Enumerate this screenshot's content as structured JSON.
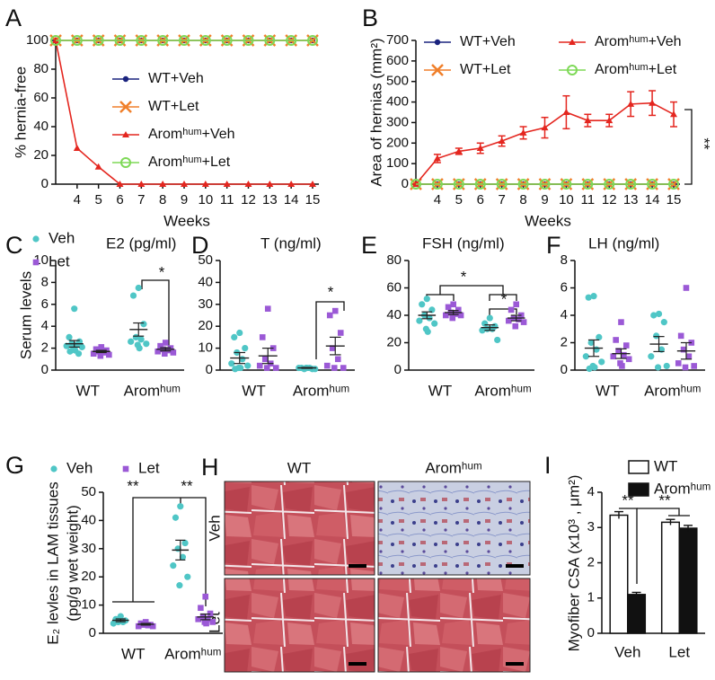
{
  "chart_data": [
    {
      "panel": "A",
      "type": "line",
      "ylabel": "% hernia-free",
      "xlabel": "Weeks",
      "categories": [
        null,
        "4",
        "5",
        "6",
        "7",
        "8",
        "9",
        "10",
        "11",
        "12",
        "13",
        "14",
        "15"
      ],
      "series": [
        {
          "name": "WT+Veh",
          "color": "#1a237e",
          "marker": "dot",
          "values": [
            100,
            100,
            100,
            100,
            100,
            100,
            100,
            100,
            100,
            100,
            100,
            100,
            100
          ]
        },
        {
          "name": "WT+Let",
          "color": "#f07f2a",
          "marker": "x",
          "values": [
            100,
            100,
            100,
            100,
            100,
            100,
            100,
            100,
            100,
            100,
            100,
            100,
            100
          ]
        },
        {
          "name": "Aromʰᵘᵐ+Veh",
          "color": "#e4261f",
          "marker": "triangle",
          "values": [
            100,
            25,
            12,
            0,
            0,
            0,
            0,
            0,
            0,
            0,
            0,
            0,
            0
          ]
        },
        {
          "name": "Aromʰᵘᵐ+Let",
          "color": "#7ed957",
          "marker": "ring",
          "values": [
            100,
            100,
            100,
            100,
            100,
            100,
            100,
            100,
            100,
            100,
            100,
            100,
            100
          ]
        }
      ],
      "ylim": [
        0,
        100
      ],
      "yticks": [
        0,
        20,
        40,
        60,
        80,
        100
      ]
    },
    {
      "panel": "B",
      "type": "line",
      "ylabel": "Area of hernias (mm²)",
      "xlabel": "Weeks",
      "categories": [
        null,
        "4",
        "5",
        "6",
        "7",
        "8",
        "9",
        "10",
        "11",
        "12",
        "13",
        "14",
        "15"
      ],
      "series": [
        {
          "name": "WT+Veh",
          "color": "#1a237e",
          "marker": "dot",
          "values": [
            0,
            0,
            0,
            0,
            0,
            0,
            0,
            0,
            0,
            0,
            0,
            0,
            0
          ]
        },
        {
          "name": "WT+Let",
          "color": "#f07f2a",
          "marker": "x",
          "values": [
            0,
            0,
            0,
            0,
            0,
            0,
            0,
            0,
            0,
            0,
            0,
            0,
            0
          ]
        },
        {
          "name": "Aromʰᵘᵐ+Veh",
          "color": "#e4261f",
          "marker": "triangle",
          "values": [
            0,
            125,
            160,
            175,
            210,
            250,
            275,
            350,
            310,
            310,
            390,
            395,
            340
          ],
          "errors": [
            0,
            20,
            15,
            25,
            25,
            30,
            50,
            80,
            30,
            30,
            60,
            60,
            60
          ]
        },
        {
          "name": "Aromʰᵘᵐ+Let",
          "color": "#7ed957",
          "marker": "ring",
          "values": [
            0,
            0,
            0,
            0,
            0,
            0,
            0,
            0,
            0,
            0,
            0,
            0,
            0
          ]
        }
      ],
      "ylim": [
        0,
        700
      ],
      "yticks": [
        0,
        100,
        200,
        300,
        400,
        500,
        600,
        700
      ],
      "annotations": [
        "**"
      ]
    },
    {
      "panel": "C",
      "type": "strip",
      "title": "E2 (pg/ml)",
      "ylabel": "Serum levels",
      "categories": [
        "WT",
        "Aromʰᵘᵐ"
      ],
      "series": [
        {
          "name": "Veh",
          "color": "#4fc6c6",
          "marker": "circle",
          "values": [
            [
              5.6,
              3.0,
              2.6,
              2.4,
              2.3,
              2.2,
              2.1,
              2.0,
              1.8,
              1.7,
              1.5
            ],
            [
              7.5,
              6.8,
              4.2,
              3.0,
              2.8,
              2.6,
              2.4,
              2.3,
              2.0
            ]
          ],
          "mean": [
            2.4,
            3.7
          ],
          "sem": [
            0.3,
            0.6
          ]
        },
        {
          "name": "Let",
          "color": "#9b59d6",
          "marker": "square",
          "values": [
            [
              2.1,
              1.9,
              1.8,
              1.7,
              1.6,
              1.5,
              1.4,
              1.3,
              1.7
            ],
            [
              2.5,
              2.2,
              2.0,
              1.9,
              1.8,
              1.7,
              1.6,
              1.5
            ]
          ],
          "mean": [
            1.7,
            1.9
          ],
          "sem": [
            0.1,
            0.15
          ]
        }
      ],
      "ylim": [
        0,
        10
      ],
      "yticks": [
        0,
        2,
        4,
        6,
        8,
        10
      ],
      "annotations": [
        "*"
      ]
    },
    {
      "panel": "D",
      "type": "strip",
      "title": "T (ng/ml)",
      "categories": [
        "WT",
        "Aromʰᵘᵐ"
      ],
      "series": [
        {
          "color": "#4fc6c6",
          "marker": "circle",
          "values": [
            [
              17,
              15,
              10,
              8,
              5,
              3,
              2,
              1,
              1,
              0.5
            ],
            [
              1,
              1,
              0.5,
              0.5,
              1,
              1,
              0.5,
              1
            ]
          ],
          "mean": [
            5.5,
            1
          ],
          "sem": [
            2.5,
            0.2
          ]
        },
        {
          "color": "#9b59d6",
          "marker": "square",
          "values": [
            [
              28,
              15,
              10,
              5,
              3,
              2,
              1,
              1
            ],
            [
              27,
              25,
              17,
              10,
              5,
              2,
              1,
              1
            ]
          ],
          "mean": [
            6.5,
            11
          ],
          "sem": [
            3.5,
            4
          ]
        }
      ],
      "ylim": [
        0,
        50
      ],
      "yticks": [
        0,
        10,
        20,
        30,
        40,
        50
      ],
      "annotations": [
        "*"
      ]
    },
    {
      "panel": "E",
      "type": "strip",
      "title": "FSH (ng/ml)",
      "categories": [
        "WT",
        "Aromʰᵘᵐ"
      ],
      "series": [
        {
          "color": "#4fc6c6",
          "marker": "circle",
          "values": [
            [
              52,
              48,
              44,
              40,
              38,
              36,
              34,
              30,
              28
            ],
            [
              38,
              34,
              32,
              30,
              30,
              29,
              22
            ]
          ],
          "mean": [
            40,
            31
          ],
          "sem": [
            2.5,
            2
          ]
        },
        {
          "color": "#9b59d6",
          "marker": "square",
          "values": [
            [
              48,
              46,
              44,
              42,
              41,
              40,
              40,
              38
            ],
            [
              48,
              44,
              40,
              38,
              37,
              36,
              35,
              32
            ]
          ],
          "mean": [
            42,
            38
          ],
          "sem": [
            1.5,
            2
          ]
        }
      ],
      "ylim": [
        0,
        80
      ],
      "yticks": [
        0,
        20,
        40,
        60,
        80
      ],
      "annotations": [
        "*",
        "*"
      ]
    },
    {
      "panel": "F",
      "type": "strip",
      "title": "LH (ng/ml)",
      "categories": [
        "WT",
        "Aromʰᵘᵐ"
      ],
      "series": [
        {
          "color": "#4fc6c6",
          "marker": "circle",
          "values": [
            [
              5.4,
              5.3,
              2.4,
              2.0,
              1.5,
              1.0,
              0.6,
              0.3,
              0.2,
              0.1
            ],
            [
              4.1,
              4.0,
              3.5,
              2.5,
              1.5,
              1.0,
              0.3,
              0.2
            ]
          ],
          "mean": [
            1.6,
            1.9
          ],
          "sem": [
            0.6,
            0.55
          ]
        },
        {
          "color": "#9b59d6",
          "marker": "square",
          "values": [
            [
              3.5,
              2.2,
              1.8,
              1.4,
              1.1,
              1.0,
              0.8,
              0.5,
              0.3
            ],
            [
              6.0,
              2.5,
              2.0,
              1.5,
              1.0,
              0.5,
              0.3,
              0.2
            ]
          ],
          "mean": [
            1.2,
            1.4
          ],
          "sem": [
            0.35,
            0.6
          ]
        }
      ],
      "ylim": [
        0,
        8
      ],
      "yticks": [
        0,
        2,
        4,
        6,
        8
      ]
    },
    {
      "panel": "G",
      "type": "strip",
      "ylabel": [
        "E₂ levles in LAM tissues",
        "(pg/g wet weight)"
      ],
      "categories": [
        "WT",
        "Aromʰᵘᵐ"
      ],
      "series": [
        {
          "name": "Veh",
          "color": "#4fc6c6",
          "marker": "circle",
          "values": [
            [
              6,
              5,
              4.5,
              4,
              4,
              3.5
            ],
            [
              45,
              41,
              32,
              30,
              27,
              24,
              20,
              17
            ]
          ],
          "mean": [
            4.6,
            29.5
          ],
          "sem": [
            0.5,
            3.5
          ]
        },
        {
          "name": "Let",
          "color": "#9b59d6",
          "marker": "square",
          "values": [
            [
              4,
              3.5,
              3,
              3,
              2.8,
              2.5,
              2.5
            ],
            [
              13,
              9,
              7,
              6,
              5,
              5,
              4,
              4,
              3.5
            ]
          ],
          "mean": [
            3.2,
            5.8
          ],
          "sem": [
            0.3,
            1
          ]
        }
      ],
      "ylim": [
        0,
        50
      ],
      "yticks": [
        0,
        10,
        20,
        30,
        40,
        50
      ],
      "annotations": [
        "**",
        "**"
      ]
    },
    {
      "panel": "I",
      "type": "bar",
      "ylabel": "Myofiber CSA (x10³ , μm²)",
      "categories": [
        "Veh",
        "Let"
      ],
      "series": [
        {
          "name": "WT",
          "color": "#ffffff",
          "values": [
            3.35,
            3.15
          ],
          "errors": [
            0.1,
            0.08
          ]
        },
        {
          "name": "Aromʰᵘᵐ",
          "color": "#111111",
          "values": [
            1.1,
            2.98
          ],
          "errors": [
            0.06,
            0.08
          ]
        }
      ],
      "ylim": [
        0,
        4
      ],
      "yticks": [
        0,
        1,
        2,
        3,
        4
      ],
      "annotations": [
        "**",
        "**"
      ]
    }
  ],
  "histology": {
    "panel": "H",
    "columns": [
      "WT",
      "Aromʰᵘᵐ"
    ],
    "rows": [
      "Veh",
      "Let"
    ]
  }
}
